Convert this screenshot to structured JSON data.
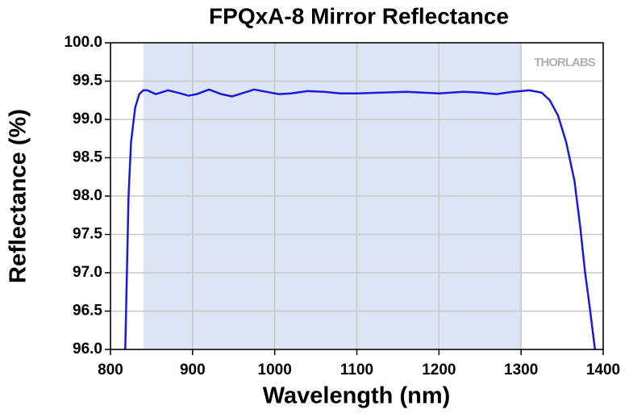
{
  "chart_data": {
    "type": "line",
    "title": "FPQxA-8 Mirror Reflectance",
    "xlabel": "Wavelength (nm)",
    "ylabel": "Reflectance (%)",
    "watermark": "THORLABS",
    "shaded_region": [
      840,
      1300
    ],
    "shaded_color": "#dce4f5",
    "grid": true,
    "xlim": [
      800,
      1400
    ],
    "xticks": [
      800,
      900,
      1000,
      1100,
      1200,
      1300,
      1400
    ],
    "ylim": [
      96,
      100
    ],
    "yticks": [
      {
        "value": 96,
        "label": "96.0"
      },
      {
        "value": 96.5,
        "label": "96.5"
      },
      {
        "value": 97,
        "label": "97.0"
      },
      {
        "value": 97.5,
        "label": "97.5"
      },
      {
        "value": 98,
        "label": "98.0"
      },
      {
        "value": 98.5,
        "label": "98.5"
      },
      {
        "value": 99,
        "label": "99.0"
      },
      {
        "value": 99.5,
        "label": "99.5"
      },
      {
        "value": 100,
        "label": "100.0"
      }
    ],
    "series": [
      {
        "name": "Reflectance",
        "color": "#1a1adb",
        "x": [
          818,
          820,
          822,
          825,
          830,
          835,
          840,
          845,
          855,
          870,
          885,
          895,
          905,
          920,
          935,
          948,
          960,
          975,
          990,
          1005,
          1020,
          1040,
          1060,
          1080,
          1100,
          1130,
          1160,
          1200,
          1230,
          1250,
          1270,
          1290,
          1310,
          1325,
          1335,
          1345,
          1355,
          1365,
          1372,
          1378,
          1383,
          1390
        ],
        "values": [
          96.0,
          97.0,
          98.0,
          98.7,
          99.15,
          99.33,
          99.38,
          99.38,
          99.33,
          99.38,
          99.34,
          99.31,
          99.33,
          99.39,
          99.33,
          99.3,
          99.34,
          99.39,
          99.36,
          99.33,
          99.34,
          99.37,
          99.36,
          99.34,
          99.34,
          99.35,
          99.36,
          99.34,
          99.36,
          99.35,
          99.33,
          99.36,
          99.38,
          99.35,
          99.25,
          99.05,
          98.7,
          98.2,
          97.6,
          97.0,
          96.6,
          96.0
        ]
      }
    ]
  }
}
